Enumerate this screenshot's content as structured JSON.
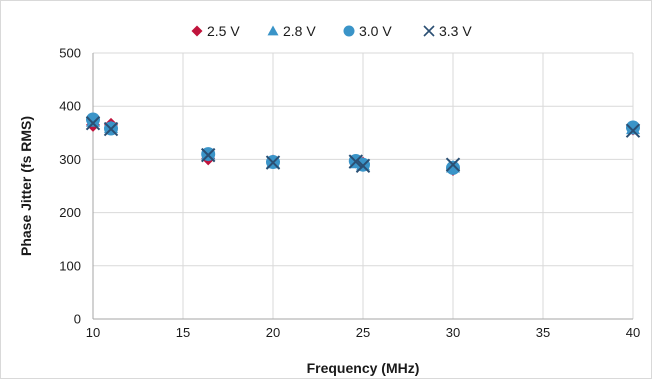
{
  "chart_data": {
    "type": "scatter",
    "title": "",
    "xlabel": "Frequency (MHz)",
    "ylabel": "Phase Jitter (fs RMS)",
    "xlim": [
      10,
      40
    ],
    "ylim": [
      0,
      500
    ],
    "xticks": [
      10,
      15,
      20,
      25,
      30,
      35,
      40
    ],
    "yticks": [
      0,
      100,
      200,
      300,
      400,
      500
    ],
    "grid": true,
    "legend_position": "top",
    "series": [
      {
        "name": "2.5 V",
        "marker": "diamond",
        "color": "#c0143c",
        "x": [
          10,
          11,
          16.4,
          20,
          24.6,
          25,
          30,
          40
        ],
        "y": [
          365,
          365,
          302,
          296,
          296,
          292,
          282,
          358
        ]
      },
      {
        "name": "2.8 V",
        "marker": "triangle",
        "color": "#3a94c8",
        "x": [
          10,
          11,
          16.4,
          20,
          24.6,
          25,
          30,
          40
        ],
        "y": [
          372,
          360,
          310,
          294,
          294,
          290,
          286,
          358
        ]
      },
      {
        "name": "3.0 V",
        "marker": "circle",
        "color": "#3a94c8",
        "x": [
          10,
          11,
          16.4,
          20,
          24.6,
          25,
          30,
          40
        ],
        "y": [
          375,
          358,
          310,
          295,
          297,
          290,
          284,
          360
        ]
      },
      {
        "name": "3.3 V",
        "marker": "x",
        "color": "#2b4f73",
        "x": [
          10,
          11,
          16.4,
          20,
          24.6,
          25,
          30,
          40
        ],
        "y": [
          368,
          357,
          308,
          294,
          296,
          288,
          290,
          354
        ]
      }
    ]
  }
}
